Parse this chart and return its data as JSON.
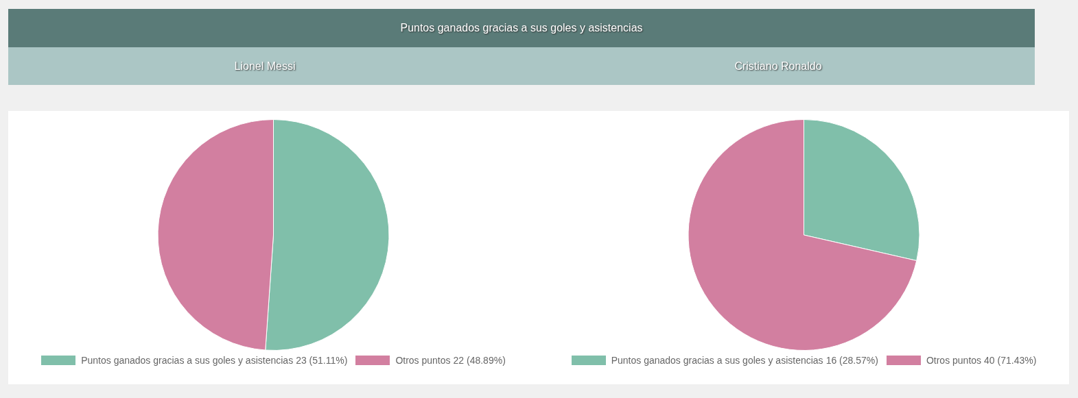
{
  "chart_data": [
    {
      "type": "pie",
      "title": "Puntos ganados gracias a sus goles y asistencias",
      "subtitle": "Lionel Messi",
      "categories": [
        "Puntos ganados gracias a sus goles y asistencias",
        "Otros puntos"
      ],
      "values": [
        23,
        22
      ],
      "colors": [
        "#80bfaa",
        "#d27fa0"
      ],
      "value_labels": [
        "23 (51.11%)",
        "22 (48.89%)"
      ],
      "legend": "bottom"
    },
    {
      "type": "pie",
      "subtitle": "Cristiano Ronaldo",
      "categories": [
        "Puntos ganados gracias a sus goles y asistencias",
        "Otros puntos"
      ],
      "values": [
        16,
        40
      ],
      "colors": [
        "#80bfaa",
        "#d27fa0"
      ],
      "value_labels": [
        "16 (28.57%)",
        "40 (71.43%)"
      ],
      "legend": "bottom"
    }
  ]
}
